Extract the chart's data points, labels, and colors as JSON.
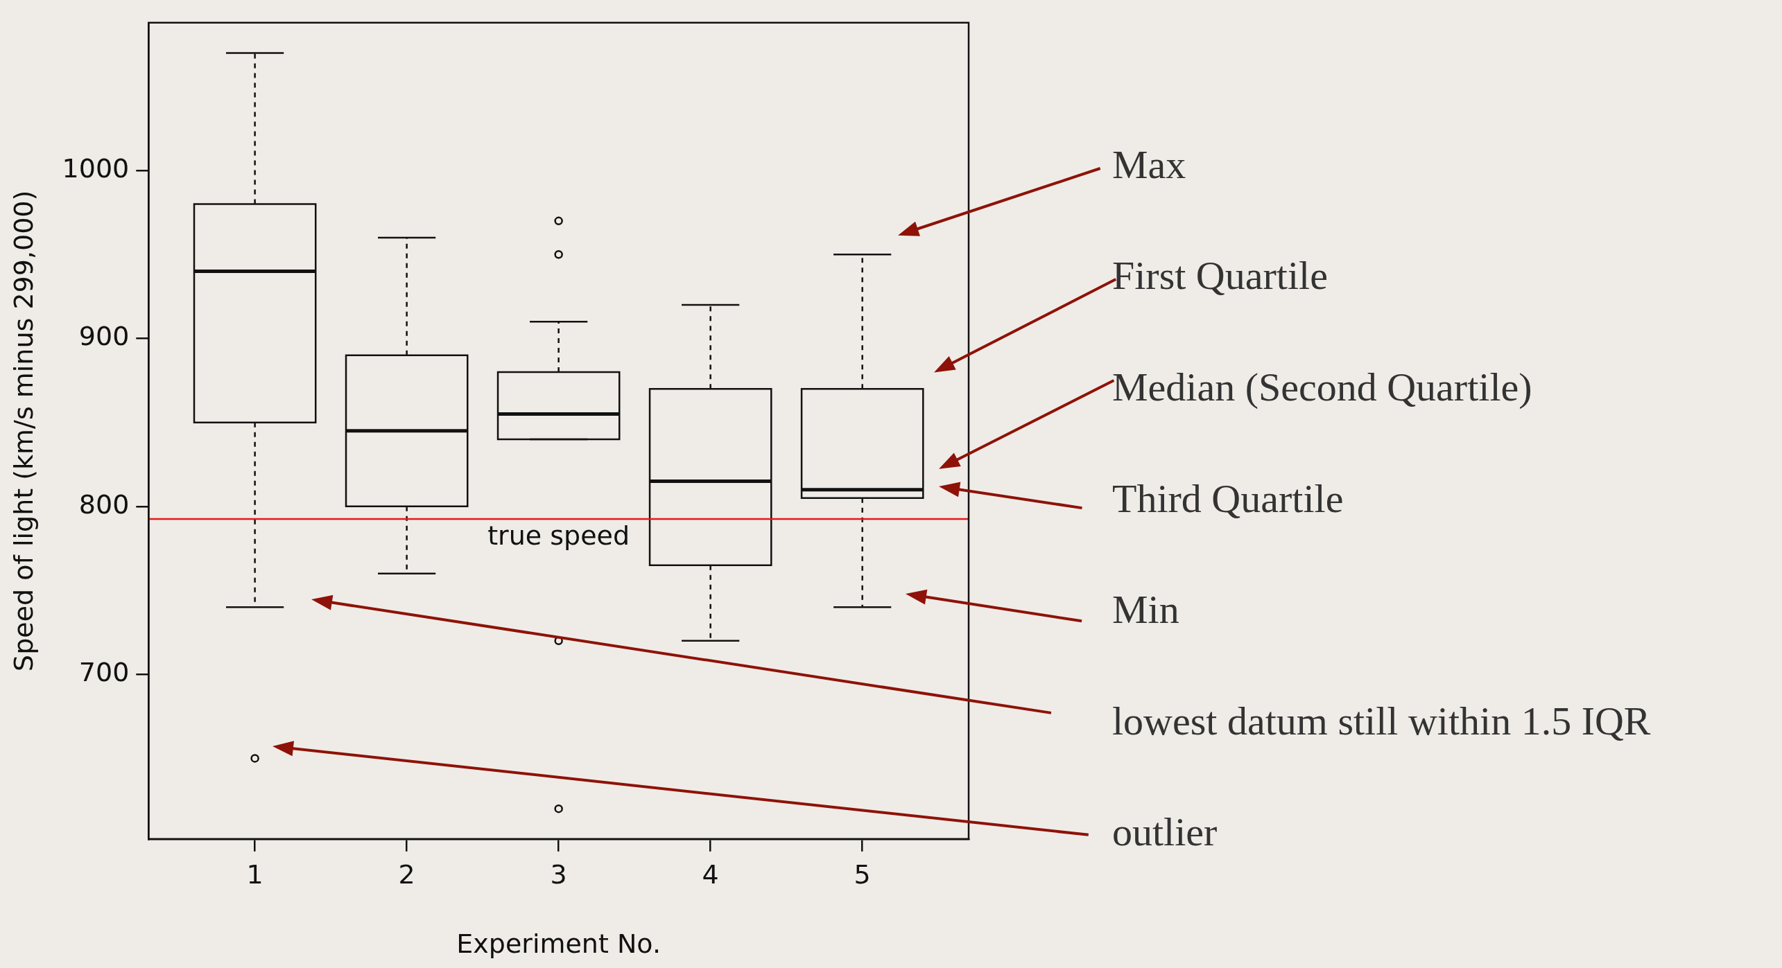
{
  "chart_data": {
    "type": "box",
    "xlabel": "Experiment No.",
    "ylabel": "Speed of light (km/s minus 299,000)",
    "categories": [
      "1",
      "2",
      "3",
      "4",
      "5"
    ],
    "boxes": [
      {
        "low": 740,
        "q1": 850,
        "median": 940,
        "q3": 980,
        "high": 1070,
        "outliers": [
          650
        ]
      },
      {
        "low": 760,
        "q1": 800,
        "median": 845,
        "q3": 890,
        "high": 960
      },
      {
        "low": 840,
        "q1": 840,
        "median": 855,
        "q3": 880,
        "high": 910,
        "outliers": [
          970,
          950,
          720,
          620
        ]
      },
      {
        "low": 720,
        "q1": 765,
        "median": 815,
        "q3": 870,
        "high": 920
      },
      {
        "low": 740,
        "q1": 805,
        "median": 810,
        "q3": 870,
        "high": 950
      }
    ],
    "ylim": [
      602,
      1088
    ],
    "yticks": [
      700,
      800,
      900,
      1000
    ],
    "ref_lines": [
      {
        "axis": "y",
        "value": 792.5,
        "label": "true speed",
        "color": "#e8161b"
      }
    ],
    "annotations": [
      "Max",
      "First Quartile",
      "Median (Second Quartile)",
      "Third Quartile",
      "Min",
      "lowest datum still within 1.5 IQR",
      "outlier"
    ]
  }
}
